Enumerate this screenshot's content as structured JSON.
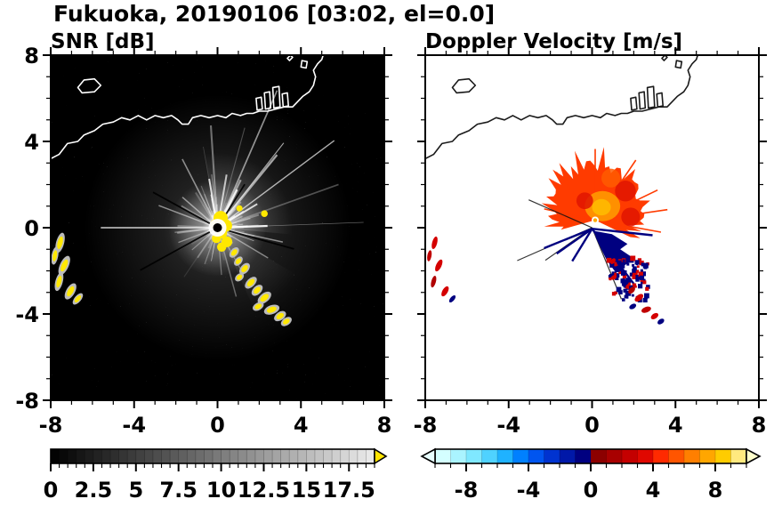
{
  "header": {
    "title": "Fukuoka, 20190106 [03:02, el=0.0]"
  },
  "panels": {
    "snr": {
      "title": "SNR [dB]"
    },
    "velocity": {
      "title": "Doppler Velocity [m/s]"
    }
  },
  "axes": {
    "range": [
      -8,
      8
    ],
    "minor_step": 1,
    "x_major": [
      -8,
      -4,
      0,
      4,
      8
    ],
    "y_major": [
      8,
      4,
      0,
      -4,
      -8
    ],
    "x_tick_labels": [
      "-8",
      "-4",
      "0",
      "4",
      "8"
    ],
    "y_tick_labels": [
      "8",
      "4",
      "0",
      "-4",
      "-8"
    ]
  },
  "colorbars": {
    "snr": {
      "range": [
        0,
        19
      ],
      "minor_step": 0.5,
      "tick_values": [
        0,
        2.5,
        5,
        7.5,
        10,
        12.5,
        15,
        17.5
      ],
      "tick_labels": [
        "0",
        "2.5",
        "5",
        "7.5",
        "10",
        "12.5",
        "15",
        "17.5"
      ],
      "colormap": "grayscale",
      "over_arrow_color": "#ffe400"
    },
    "velocity": {
      "range": [
        -10,
        10
      ],
      "minor_step": 1,
      "tick_values": [
        -8,
        -4,
        0,
        4,
        8
      ],
      "tick_labels": [
        "-8",
        "-4",
        "0",
        "4",
        "8"
      ],
      "segment_colors": [
        "#d4ffff",
        "#aaf4ff",
        "#7fe8ff",
        "#4fd2ff",
        "#1fb2ff",
        "#0080ff",
        "#0055f0",
        "#0033d0",
        "#0018a8",
        "#000080",
        "#8c0000",
        "#a80000",
        "#c40000",
        "#e00800",
        "#ff2a00",
        "#ff5500",
        "#ff7f00",
        "#ffa600",
        "#ffcc00",
        "#ffe97f"
      ],
      "under_arrow_color": "#e8ffff",
      "over_arrow_color": "#ffffcc"
    }
  },
  "map": {
    "coastline": [
      {
        "closed": false,
        "points": [
          [
            -8,
            3.2
          ],
          [
            -7.6,
            3.4
          ],
          [
            -7.2,
            3.9
          ],
          [
            -6.7,
            4.0
          ],
          [
            -6.4,
            4.3
          ],
          [
            -5.9,
            4.5
          ],
          [
            -5.5,
            4.8
          ],
          [
            -5.0,
            4.9
          ],
          [
            -4.6,
            5.1
          ],
          [
            -4.2,
            5.0
          ],
          [
            -3.8,
            5.2
          ],
          [
            -3.4,
            5.0
          ],
          [
            -3.0,
            5.2
          ],
          [
            -2.6,
            5.1
          ],
          [
            -2.2,
            5.2
          ],
          [
            -1.9,
            5.0
          ],
          [
            -1.7,
            4.8
          ],
          [
            -1.4,
            4.8
          ],
          [
            -1.2,
            5.1
          ],
          [
            -0.8,
            5.2
          ],
          [
            -0.4,
            5.1
          ],
          [
            0,
            5.2
          ],
          [
            0.4,
            5.1
          ],
          [
            0.7,
            5.3
          ],
          [
            1.1,
            5.2
          ],
          [
            1.4,
            5.3
          ],
          [
            1.7,
            5.3
          ],
          [
            2.0,
            5.4
          ],
          [
            2.4,
            5.4
          ],
          [
            2.8,
            5.5
          ],
          [
            3.2,
            5.6
          ],
          [
            3.6,
            5.6
          ],
          [
            3.9,
            5.9
          ],
          [
            4.1,
            6.1
          ],
          [
            4.4,
            6.3
          ],
          [
            4.6,
            6.6
          ],
          [
            4.7,
            7.0
          ],
          [
            4.6,
            7.3
          ],
          [
            4.8,
            7.6
          ],
          [
            5.0,
            7.8
          ],
          [
            5.1,
            8.1
          ]
        ]
      },
      {
        "closed": true,
        "points": [
          [
            -6.7,
            6.5
          ],
          [
            -6.4,
            6.85
          ],
          [
            -5.9,
            6.9
          ],
          [
            -5.6,
            6.6
          ],
          [
            -5.9,
            6.3
          ],
          [
            -6.5,
            6.25
          ]
        ]
      },
      {
        "closed": true,
        "points": [
          [
            1.9,
            5.45
          ],
          [
            1.85,
            6.0
          ],
          [
            2.1,
            6.05
          ],
          [
            2.15,
            5.5
          ]
        ]
      },
      {
        "closed": true,
        "points": [
          [
            2.3,
            5.5
          ],
          [
            2.25,
            6.25
          ],
          [
            2.5,
            6.3
          ],
          [
            2.55,
            5.55
          ]
        ]
      },
      {
        "closed": true,
        "points": [
          [
            2.7,
            5.55
          ],
          [
            2.65,
            6.5
          ],
          [
            2.95,
            6.55
          ],
          [
            3.0,
            5.6
          ]
        ]
      },
      {
        "closed": true,
        "points": [
          [
            3.15,
            5.6
          ],
          [
            3.1,
            6.2
          ],
          [
            3.35,
            6.25
          ],
          [
            3.4,
            5.65
          ]
        ]
      },
      {
        "closed": true,
        "points": [
          [
            4.0,
            7.45
          ],
          [
            4.05,
            7.75
          ],
          [
            4.3,
            7.7
          ],
          [
            4.25,
            7.4
          ]
        ]
      },
      {
        "closed": true,
        "points": [
          [
            3.35,
            7.85
          ],
          [
            3.5,
            8.0
          ],
          [
            3.6,
            7.9
          ],
          [
            3.45,
            7.75
          ]
        ]
      }
    ]
  },
  "chart_data": [
    {
      "type": "heatmap",
      "title": "SNR [dB]",
      "units": "dB",
      "xlim": [
        -8,
        8
      ],
      "ylim": [
        -8,
        8
      ],
      "colorbar_ticks": [
        0,
        2.5,
        5,
        7.5,
        10,
        12.5,
        15,
        17.5
      ],
      "summary": "Radar SNR PPI on black: bright radial streaks from radar at (0,0) strongest toward NE; yellow high-SNR cells at the site, a yellow echo chain SE to (3.3,-4.4), small echoes at west edge y=-0.7..-3.3.",
      "background": "#000000",
      "coast_color": "#ffffff",
      "ray_seed": 12,
      "ray_count": 120,
      "bright_rays": [
        {
          "a": 180,
          "r": 5.6,
          "o": 0.8,
          "w": 1.6
        },
        {
          "a": 2,
          "r": 2.4,
          "o": 0.9,
          "w": 2.2
        },
        {
          "a": 100,
          "r": 2.3,
          "o": 0.8,
          "w": 2.0
        },
        {
          "a": 118,
          "r": 3.6,
          "o": 0.5,
          "w": 1.6
        },
        {
          "a": 62,
          "r": 2.0,
          "o": 0.85,
          "w": 2.4
        },
        {
          "a": 30,
          "r": 2.2,
          "o": 0.8,
          "w": 2.0
        },
        {
          "a": 80,
          "r": 2.5,
          "o": 0.7,
          "w": 2.0
        },
        {
          "a": 140,
          "r": 2.2,
          "o": 0.5,
          "w": 1.5
        },
        {
          "a": 160,
          "r": 3.0,
          "o": 0.5,
          "w": 1.5
        },
        {
          "a": 200,
          "r": 2.0,
          "o": 0.4,
          "w": 1.4
        },
        {
          "a": 220,
          "r": 1.6,
          "o": 0.35,
          "w": 1.2
        },
        {
          "a": 250,
          "r": 1.8,
          "o": 0.3,
          "w": 1.2
        },
        {
          "a": 275,
          "r": 2.2,
          "o": 0.35,
          "w": 1.2
        },
        {
          "a": 300,
          "r": 2.4,
          "o": 0.3,
          "w": 1.2
        },
        {
          "a": 330,
          "r": 2.8,
          "o": 0.45,
          "w": 1.4
        },
        {
          "a": 348,
          "r": 3.2,
          "o": 0.5,
          "w": 1.5
        }
      ],
      "bright_wedges": [
        {
          "a0": -5,
          "a1": 100,
          "r": 3.6,
          "opacity": 0.22
        },
        {
          "a0": 100,
          "a1": 150,
          "r": 2.2,
          "opacity": 0.1
        },
        {
          "a0": 160,
          "a1": 210,
          "r": 2.6,
          "opacity": 0.12
        },
        {
          "a0": -65,
          "a1": -30,
          "r": 4.4,
          "opacity": 0.1
        }
      ],
      "dark_rays": [
        {
          "a": 208,
          "r": 4.2
        },
        {
          "a": 152,
          "r": 3.5
        },
        {
          "a": 57,
          "r": 2.4
        },
        {
          "a": 345,
          "r": 3.8
        }
      ],
      "center_color": "#ffe800",
      "center_blobs": [
        [
          0.15,
          0.45,
          0.34
        ],
        [
          -0.1,
          0.15,
          0.26
        ],
        [
          0.4,
          0.1,
          0.3
        ],
        [
          0.2,
          -0.25,
          0.26
        ],
        [
          -0.05,
          -0.5,
          0.22
        ],
        [
          0.45,
          -0.65,
          0.26
        ],
        [
          0.2,
          -0.9,
          0.22
        ],
        [
          1.05,
          0.9,
          0.15
        ],
        [
          2.25,
          0.65,
          0.16
        ]
      ],
      "spot_core": "#ffe800",
      "spot_halo": "#bbbbbb",
      "trail_spots": [
        [
          0.8,
          -1.15,
          0.18,
          0.11,
          -50
        ],
        [
          1.0,
          -1.55,
          0.16,
          0.1,
          -50
        ],
        [
          1.3,
          -1.9,
          0.2,
          0.12,
          -50
        ],
        [
          1.05,
          -2.3,
          0.15,
          0.1,
          -40
        ],
        [
          1.6,
          -2.55,
          0.22,
          0.12,
          -45
        ],
        [
          1.9,
          -2.9,
          0.2,
          0.12,
          -45
        ],
        [
          2.25,
          -3.25,
          0.24,
          0.13,
          -40
        ],
        [
          1.95,
          -3.65,
          0.18,
          0.11,
          -30
        ],
        [
          2.6,
          -3.8,
          0.24,
          0.13,
          -20
        ],
        [
          3.0,
          -4.1,
          0.2,
          0.12,
          -35
        ],
        [
          3.3,
          -4.35,
          0.18,
          0.11,
          -35
        ]
      ],
      "edge_spots": [
        [
          -7.55,
          -0.7,
          0.12,
          0.3,
          15
        ],
        [
          -7.8,
          -1.3,
          0.1,
          0.26,
          10
        ],
        [
          -7.35,
          -1.75,
          0.13,
          0.3,
          25
        ],
        [
          -7.6,
          -2.5,
          0.11,
          0.28,
          15
        ],
        [
          -7.05,
          -2.95,
          0.13,
          0.26,
          30
        ],
        [
          -6.7,
          -3.3,
          0.1,
          0.2,
          40
        ]
      ]
    },
    {
      "type": "heatmap",
      "title": "Doppler Velocity [m/s]",
      "units": "m/s",
      "xlim": [
        -8,
        8
      ],
      "ylim": [
        -8,
        8
      ],
      "colorbar_ticks": [
        -8,
        -4,
        0,
        4,
        8
      ],
      "summary": "Doppler velocity PPI on white: ragged red-orange fan (positive velocities) north of the radar with orange core near (0.5,1.0); navy (negative) wedges and speckled echoes SE of the radar; red/navy spots along the SE echo chain and at the west edge.",
      "background": "#ffffff",
      "coast_color": "#1a1a1a",
      "fan": {
        "cx": 0.15,
        "cy": 0.35,
        "a0": -25,
        "a1": 195,
        "step": 4,
        "seed": 5,
        "r_base": 1.3,
        "r_rand": 0.8,
        "north_boost": 0.8,
        "spike": 1.18,
        "color": "#ff3b00"
      },
      "fan_rays": [
        {
          "a": -10,
          "r": 3.2
        },
        {
          "a": 8,
          "r": 3.5
        },
        {
          "a": 25,
          "r": 3.3
        },
        {
          "a": 55,
          "r": 3.4
        },
        {
          "a": 90,
          "r": 3.3
        },
        {
          "a": 130,
          "r": 2.9
        },
        {
          "a": 168,
          "r": 2.5
        }
      ],
      "fan_inner": [
        {
          "x": 0.5,
          "y": 1.0,
          "rx": 0.85,
          "ry": 0.7,
          "color": "#ff9000"
        },
        {
          "x": 0.45,
          "y": 0.95,
          "rx": 0.45,
          "ry": 0.38,
          "color": "#ffb600"
        }
      ],
      "fan_patches": [
        {
          "x": 1.6,
          "y": 1.7,
          "r": 0.5,
          "color": "#e01500"
        },
        {
          "x": -0.35,
          "y": 1.25,
          "r": 0.4,
          "color": "#e01500"
        },
        {
          "x": 1.85,
          "y": 0.5,
          "r": 0.45,
          "color": "#e01500"
        },
        {
          "x": 0.9,
          "y": 2.3,
          "r": 0.45,
          "color": "#ff5c00"
        }
      ],
      "dark_rays": [
        {
          "a": 203,
          "r": 3.9
        },
        {
          "a": 214,
          "r": 2.7
        },
        {
          "a": 157,
          "r": 3.3
        },
        {
          "a": 293,
          "r": 3.6
        }
      ],
      "neg_color": "#000080",
      "neg_polygon": [
        [
          0.1,
          -0.15
        ],
        [
          0.95,
          -0.3
        ],
        [
          1.7,
          -0.75
        ],
        [
          1.35,
          -1.0
        ],
        [
          2.05,
          -1.45
        ],
        [
          1.55,
          -1.75
        ],
        [
          1.15,
          -2.1
        ],
        [
          0.7,
          -1.5
        ],
        [
          0.45,
          -1.0
        ],
        [
          0.2,
          -0.5
        ]
      ],
      "neg_rays": [
        [
          -2.3,
          -0.95
        ],
        [
          -1.7,
          -1.2
        ],
        [
          -0.95,
          -1.55
        ],
        [
          2.9,
          -0.35
        ],
        [
          2.0,
          -2.6
        ]
      ],
      "speckle": {
        "seed": 9,
        "count": 85,
        "x0": 0.8,
        "x1": 2.7,
        "y0": -3.4,
        "y1": -1.4,
        "navy_ratio": 0.72,
        "red_color": "#d40000"
      },
      "center_dot_color": "#ffaa00",
      "trail_spots": [
        [
          0.8,
          -1.15,
          0.18,
          0.11,
          -50
        ],
        [
          1.0,
          -1.55,
          0.16,
          0.1,
          -50
        ],
        [
          1.3,
          -1.9,
          0.2,
          0.12,
          -50
        ],
        [
          1.05,
          -2.3,
          0.15,
          0.1,
          -40
        ],
        [
          1.6,
          -2.55,
          0.22,
          0.12,
          -45
        ],
        [
          1.9,
          -2.9,
          0.2,
          0.12,
          -45
        ],
        [
          2.25,
          -3.25,
          0.24,
          0.13,
          -40
        ],
        [
          1.95,
          -3.65,
          0.18,
          0.11,
          -30
        ],
        [
          2.6,
          -3.8,
          0.24,
          0.13,
          -20
        ],
        [
          3.0,
          -4.1,
          0.2,
          0.12,
          -35
        ],
        [
          3.3,
          -4.35,
          0.18,
          0.11,
          -35
        ]
      ],
      "trail_colors": [
        "#000080",
        "#d40000",
        "#000080",
        "#d40000",
        "#000080",
        "#b00000",
        "#d40000",
        "#000080",
        "#c00000",
        "#d40000",
        "#000080"
      ],
      "edge_spots": [
        [
          -7.55,
          -0.7,
          0.12,
          0.3,
          15
        ],
        [
          -7.8,
          -1.3,
          0.1,
          0.26,
          10
        ],
        [
          -7.35,
          -1.75,
          0.13,
          0.3,
          25
        ],
        [
          -7.6,
          -2.5,
          0.11,
          0.28,
          15
        ],
        [
          -7.05,
          -2.95,
          0.13,
          0.26,
          30
        ],
        [
          -6.7,
          -3.3,
          0.1,
          0.2,
          40
        ]
      ],
      "edge_colors": [
        "#d40000",
        "#c00000",
        "#d40000",
        "#b00000",
        "#d40000",
        "#000080"
      ]
    }
  ]
}
